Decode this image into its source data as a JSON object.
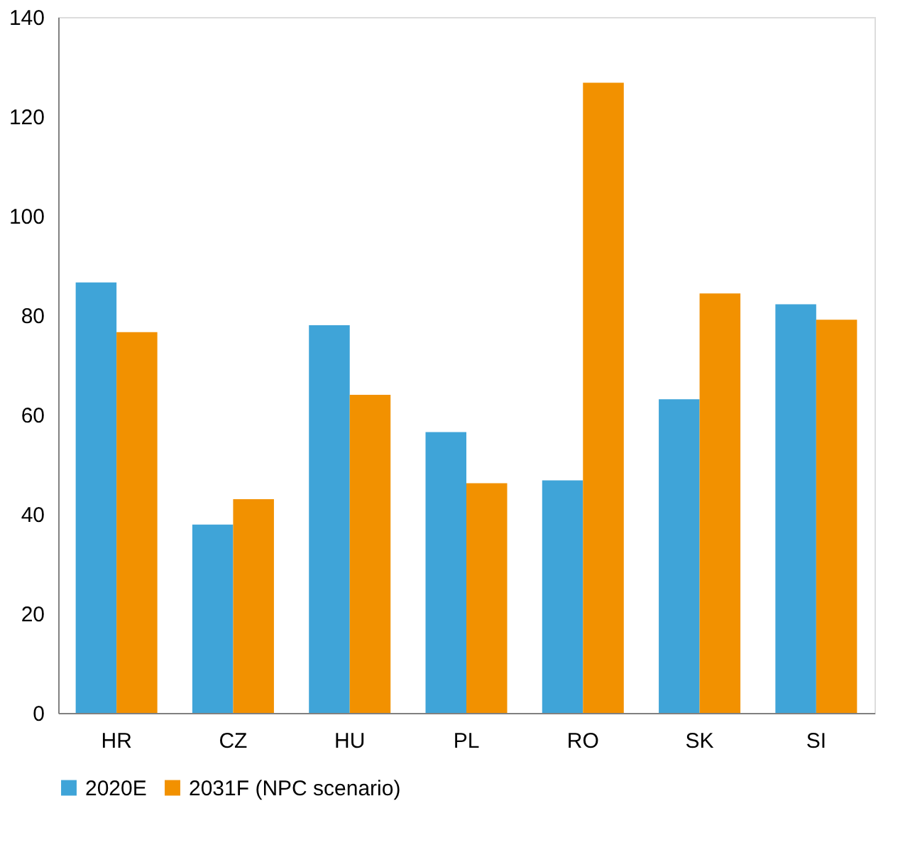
{
  "chart_data": {
    "type": "bar",
    "categories": [
      "HR",
      "CZ",
      "HU",
      "PL",
      "RO",
      "SK",
      "SI"
    ],
    "series": [
      {
        "name": "2020E",
        "color": "#3fa4d8",
        "values": [
          86.6,
          37.9,
          78.0,
          56.5,
          46.8,
          63.1,
          82.2
        ]
      },
      {
        "name": "2031F (NPC scenario)",
        "color": "#f29100",
        "values": [
          76.6,
          43.0,
          64.0,
          46.2,
          126.8,
          84.4,
          79.1
        ]
      }
    ],
    "ylim": [
      0,
      140
    ],
    "yticks": [
      0,
      20,
      40,
      60,
      80,
      100,
      120,
      140
    ],
    "grid": false,
    "legend": "bottom"
  }
}
